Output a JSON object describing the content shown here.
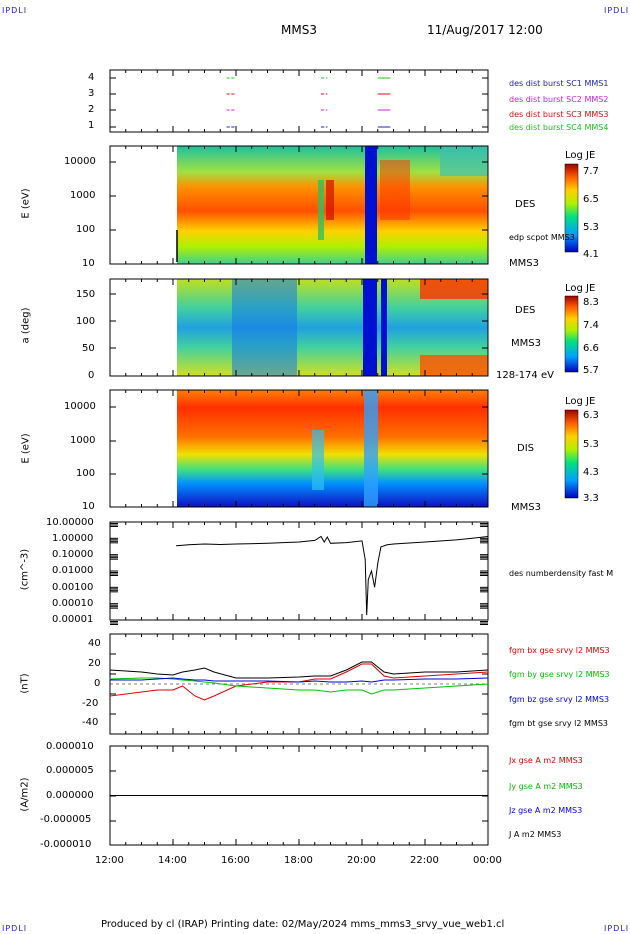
{
  "header": {
    "corner_left_top": "IPDLI",
    "corner_right_top": "IPDLI",
    "corner_left_bottom": "IPDLI",
    "corner_right_bottom": "IPDLI",
    "title": "MMS3",
    "datetime": "11/Aug/2017 12:00"
  },
  "footer": {
    "text": "Produced by cl (IRAP)   Printing date: 02/May/2024   mms_mms3_srvy_vue_web1.cl"
  },
  "colors": {
    "burst_sc1": "#2020c0",
    "burst_sc2": "#d020d0",
    "burst_sc3": "#d01010",
    "burst_sc4": "#20c020",
    "bx": "#e00000",
    "by": "#00c000",
    "bz": "#0000e0",
    "bt": "#000000"
  },
  "chart_data": [
    {
      "type": "scatter",
      "panel": "burst",
      "y_ticks": [
        "1",
        "2",
        "3",
        "4"
      ],
      "legend": [
        "des dist burst SC1 MMS1",
        "des dist burst SC2 MMS2",
        "des dist burst SC3 MMS3",
        "des dist burst SC4 MMS4"
      ],
      "burst_intervals_hours": [
        [
          15.7,
          15.8
        ],
        [
          15.85,
          15.95
        ],
        [
          18.7,
          18.8
        ],
        [
          18.85,
          18.9
        ],
        [
          20.5,
          20.9
        ]
      ]
    },
    {
      "type": "heatmap",
      "panel": "des_energy",
      "ylabel": "E (eV)",
      "yscale": "log",
      "ylim": [
        10,
        30000
      ],
      "y_ticks": [
        "10",
        "100",
        "1000",
        "10000"
      ],
      "instrument": "DES",
      "spacecraft": "MMS3",
      "overlay_label": "edp scpot MMS3",
      "colorbar": {
        "title": "Log JE",
        "ticks": [
          "7.7",
          "6.5",
          "5.3",
          "4.1"
        ],
        "range": [
          4.1,
          7.7
        ]
      },
      "data_start_hour": 14.1
    },
    {
      "type": "heatmap",
      "panel": "des_pitch",
      "ylabel": "a (deg)",
      "ylim": [
        0,
        180
      ],
      "y_ticks": [
        "0",
        "50",
        "100",
        "150"
      ],
      "instrument": "DES",
      "spacecraft": "MMS3",
      "energy_range": "128-174 eV",
      "colorbar": {
        "title": "Log JE",
        "ticks": [
          "8.3",
          "7.4",
          "6.6",
          "5.7"
        ],
        "range": [
          5.7,
          8.3
        ]
      }
    },
    {
      "type": "heatmap",
      "panel": "dis_energy",
      "ylabel": "E (eV)",
      "yscale": "log",
      "ylim": [
        10,
        30000
      ],
      "y_ticks": [
        "10",
        "100",
        "1000",
        "10000"
      ],
      "instrument": "DIS",
      "spacecraft": "MMS3",
      "colorbar": {
        "title": "Log JE",
        "ticks": [
          "6.3",
          "5.3",
          "4.3",
          "3.3"
        ],
        "range": [
          3.3,
          6.3
        ]
      }
    },
    {
      "type": "line",
      "panel": "density",
      "ylabel": "(cm^-3)",
      "yscale": "log",
      "ylim": [
        1e-05,
        10
      ],
      "y_ticks": [
        "10.00000",
        "1.00000",
        "0.10000",
        "0.01000",
        "0.00100",
        "0.00010",
        "0.00001"
      ],
      "series_label": "des numberdensity fast M",
      "x": [
        14.1,
        14.5,
        15.0,
        15.5,
        16.0,
        17.0,
        18.0,
        18.5,
        18.7,
        18.8,
        18.9,
        19.0,
        19.5,
        20.0,
        20.1,
        20.15,
        20.2,
        20.3,
        20.4,
        20.5,
        20.6,
        20.8,
        21.0,
        22.0,
        23.0,
        23.5,
        24.0
      ],
      "y": [
        0.35,
        0.4,
        0.45,
        0.42,
        0.45,
        0.5,
        0.6,
        0.75,
        1.3,
        0.6,
        1.2,
        0.5,
        0.55,
        0.7,
        0.05,
        2e-05,
        0.003,
        0.01,
        0.001,
        0.03,
        0.3,
        0.4,
        0.45,
        0.6,
        0.8,
        1.0,
        1.3
      ]
    },
    {
      "type": "line",
      "panel": "magnetic_field",
      "ylabel": "(nT)",
      "ylim": [
        -50,
        50
      ],
      "y_ticks": [
        "40",
        "20",
        "0",
        "-20",
        "-40"
      ],
      "x": [
        12.0,
        13.0,
        13.5,
        14.0,
        14.3,
        14.7,
        15.0,
        15.3,
        16.0,
        17.0,
        18.0,
        18.5,
        19.0,
        19.5,
        20.0,
        20.3,
        20.7,
        21.0,
        22.0,
        23.0,
        24.0
      ],
      "series": [
        {
          "name": "fgm bx gse srvy l2 MMS3",
          "values": [
            -12,
            -8,
            -6,
            -6,
            -2,
            -12,
            -16,
            -12,
            -2,
            2,
            2,
            5,
            5,
            12,
            20,
            20,
            8,
            6,
            8,
            10,
            12
          ]
        },
        {
          "name": "fgm by gse srvy l2 MMS3",
          "values": [
            5,
            6,
            6,
            5,
            4,
            3,
            2,
            1,
            -2,
            -4,
            -6,
            -6,
            -8,
            -6,
            -6,
            -10,
            -6,
            -6,
            -4,
            -2,
            0
          ]
        },
        {
          "name": "fgm bz gse srvy l2 MMS3",
          "values": [
            4,
            4,
            5,
            6,
            5,
            4,
            4,
            3,
            3,
            3,
            2,
            3,
            2,
            2,
            3,
            2,
            4,
            4,
            5,
            5,
            6
          ]
        },
        {
          "name": "fgm bt gse srvy l2 MMS3",
          "values": [
            14,
            12,
            10,
            9,
            12,
            14,
            16,
            12,
            6,
            6,
            7,
            8,
            8,
            14,
            22,
            22,
            12,
            10,
            12,
            12,
            14
          ]
        }
      ]
    },
    {
      "type": "line",
      "panel": "current_density",
      "ylabel": "(A/m2)",
      "ylim": [
        -1e-05,
        1e-05
      ],
      "y_ticks": [
        "0.000010",
        "0.000005",
        "0.000000",
        "-0.000005",
        "-0.000010"
      ],
      "x_ticks": [
        "12:00",
        "14:00",
        "16:00",
        "18:00",
        "20:00",
        "22:00",
        "00:00"
      ],
      "series": [
        {
          "name": "Jx gse A m2 MMS3",
          "values": [
            0,
            0
          ]
        },
        {
          "name": "Jy gse A m2 MMS3",
          "values": [
            0,
            0
          ]
        },
        {
          "name": "Jz gse A m2 MMS3",
          "values": [
            0,
            0
          ]
        },
        {
          "name": "J A m2 MMS3",
          "values": [
            0,
            0
          ]
        }
      ]
    }
  ]
}
